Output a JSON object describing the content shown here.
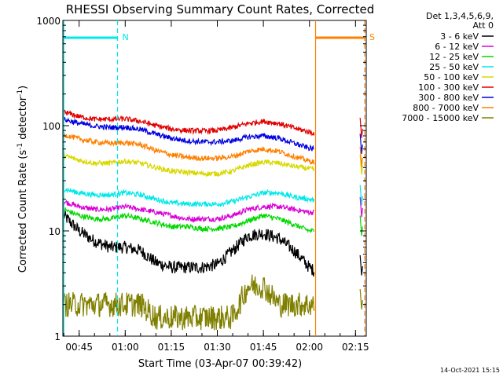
{
  "chart_data": {
    "type": "line",
    "title": "RHESSI Observing Summary Count Rates, Corrected",
    "xlabel": "Start Time (03-Apr-07 00:39:42)",
    "ylabel_main": "Corrected Count Rate (s",
    "ylabel_sup1": "-1",
    "ylabel_mid": " detector",
    "ylabel_sup2": "-1",
    "ylabel_end": ")",
    "yscale": "log",
    "ylim": [
      1,
      1000
    ],
    "xlim_min": [
      39.7,
      138.5
    ],
    "y_ticks": [
      {
        "value": 1,
        "label": "1"
      },
      {
        "value": 10,
        "label": "10"
      },
      {
        "value": 100,
        "label": "100"
      },
      {
        "value": 1000,
        "label": "1000"
      }
    ],
    "x_ticks": [
      {
        "value": 45,
        "label": "00:45"
      },
      {
        "value": 60,
        "label": "01:00"
      },
      {
        "value": 75,
        "label": "01:15"
      },
      {
        "value": 90,
        "label": "01:30"
      },
      {
        "value": 105,
        "label": "01:45"
      },
      {
        "value": 120,
        "label": "02:00"
      },
      {
        "value": 135,
        "label": "02:15"
      }
    ],
    "legend_title": [
      "Det 1,3,4,5,6,9,",
      "Att 0"
    ],
    "series": [
      {
        "name": "3 - 6 keV",
        "color": "#000000",
        "x": [
          40,
          45,
          50,
          55,
          60,
          65,
          70,
          75,
          80,
          85,
          90,
          95,
          100,
          105,
          110,
          115,
          120,
          121.5
        ],
        "y": [
          14,
          10,
          8,
          7,
          7,
          6.5,
          5,
          4.5,
          4.5,
          4.5,
          4.8,
          6.5,
          9,
          9.5,
          8.5,
          6.5,
          4.5,
          4.2
        ]
      },
      {
        "name": "6 - 12 keV",
        "color": "#d800d8",
        "x": [
          40,
          45,
          50,
          55,
          60,
          65,
          70,
          75,
          80,
          85,
          90,
          95,
          100,
          105,
          110,
          115,
          120,
          121.5
        ],
        "y": [
          19,
          17,
          16,
          16,
          17,
          16,
          15,
          14,
          13,
          13,
          13,
          14,
          16,
          17,
          17,
          16,
          15,
          15
        ]
      },
      {
        "name": "12 - 25 keV",
        "color": "#00d800",
        "x": [
          40,
          45,
          50,
          55,
          60,
          65,
          70,
          75,
          80,
          85,
          90,
          95,
          100,
          105,
          110,
          115,
          120,
          121.5
        ],
        "y": [
          16,
          14,
          13,
          13,
          14,
          13,
          12,
          11,
          11,
          10.5,
          10.5,
          11,
          12.5,
          14,
          13,
          11.5,
          10,
          10
        ]
      },
      {
        "name": "25 - 50 keV",
        "color": "#00e8e8",
        "x": [
          40,
          45,
          50,
          55,
          60,
          65,
          70,
          75,
          80,
          85,
          90,
          95,
          100,
          105,
          110,
          115,
          120,
          121.5
        ],
        "y": [
          25,
          23,
          22,
          22,
          23,
          22,
          20,
          18.5,
          18,
          18,
          18,
          19,
          21,
          23,
          23,
          21,
          20,
          19.5
        ]
      },
      {
        "name": "50 - 100 keV",
        "color": "#d8d800",
        "x": [
          40,
          45,
          50,
          55,
          60,
          65,
          70,
          75,
          80,
          85,
          90,
          95,
          100,
          105,
          110,
          115,
          120,
          121.5
        ],
        "y": [
          52,
          47,
          44,
          44,
          46,
          44,
          40,
          37,
          36,
          35,
          35,
          37,
          42,
          45,
          44,
          41,
          39,
          38
        ]
      },
      {
        "name": "100 - 300 keV",
        "color": "#e00000",
        "x": [
          40,
          45,
          50,
          55,
          60,
          65,
          70,
          75,
          80,
          85,
          90,
          95,
          100,
          105,
          110,
          115,
          120,
          121.5
        ],
        "y": [
          135,
          122,
          115,
          115,
          116,
          110,
          100,
          93,
          90,
          89,
          90,
          96,
          105,
          110,
          105,
          95,
          87,
          85
        ]
      },
      {
        "name": "300 - 800 keV",
        "color": "#0000e0",
        "x": [
          40,
          45,
          50,
          55,
          60,
          65,
          70,
          75,
          80,
          85,
          90,
          95,
          100,
          105,
          110,
          115,
          120,
          121.5
        ],
        "y": [
          115,
          105,
          99,
          96,
          97,
          92,
          83,
          76,
          72,
          70,
          70,
          72,
          78,
          80,
          76,
          68,
          61,
          60
        ]
      },
      {
        "name": "800 - 7000 keV",
        "color": "#ff8000",
        "x": [
          40,
          45,
          50,
          55,
          60,
          65,
          70,
          75,
          80,
          85,
          90,
          95,
          100,
          105,
          110,
          115,
          120,
          121.5
        ],
        "y": [
          82,
          75,
          70,
          68,
          69,
          66,
          58,
          53,
          50,
          49,
          49,
          51,
          57,
          60,
          57,
          51,
          46,
          45
        ]
      },
      {
        "name": "7000 - 15000 keV",
        "color": "#808000",
        "x": [
          40,
          45,
          50,
          55,
          60,
          65,
          70,
          75,
          80,
          85,
          90,
          95,
          100,
          105,
          110,
          115,
          120,
          121.5
        ],
        "y": [
          2,
          2,
          2,
          2,
          2,
          2,
          1.5,
          1.5,
          1.5,
          1.5,
          1.5,
          1.5,
          3,
          3,
          2,
          2,
          2,
          2
        ]
      }
    ],
    "markers": [
      {
        "label": "N",
        "color": "#00e8e8",
        "x_start": 40,
        "x_end": 57.5
      },
      {
        "label": "S",
        "color": "#ff8000",
        "x_start": 122,
        "x_end": 138
      }
    ],
    "timestamp": "14-Oct-2021 15:15"
  }
}
